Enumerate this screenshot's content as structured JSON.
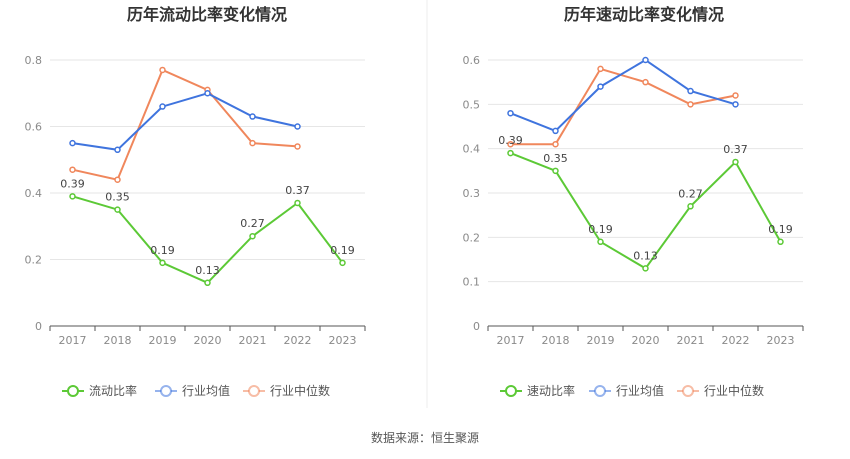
{
  "source_text": "数据来源：恒生聚源",
  "colors": {
    "company": "#5cc936",
    "industry_avg": "#3f74de",
    "industry_median": "#f0875c",
    "grid": "#e6e6e6",
    "axis": "#555555"
  },
  "chart_data": [
    {
      "type": "line",
      "title": "历年流动比率变化情况",
      "categories": [
        "2017",
        "2018",
        "2019",
        "2020",
        "2021",
        "2022",
        "2023"
      ],
      "ylim": [
        0,
        0.8
      ],
      "yticks": [
        0,
        0.2,
        0.4,
        0.6,
        0.8
      ],
      "ytick_labels": [
        "0",
        "0.2",
        "0.4",
        "0.6",
        "0.8"
      ],
      "series": [
        {
          "name": "流动比率",
          "key": "company",
          "values": [
            0.39,
            0.35,
            0.19,
            0.13,
            0.27,
            0.37,
            0.19
          ],
          "labels": [
            "0.39",
            "0.35",
            "0.19",
            "0.13",
            "0.27",
            "0.37",
            "0.19"
          ]
        },
        {
          "name": "行业均值",
          "key": "industry_avg",
          "values": [
            0.55,
            0.53,
            0.66,
            0.7,
            0.63,
            0.6,
            null
          ]
        },
        {
          "name": "行业中位数",
          "key": "industry_median",
          "values": [
            0.47,
            0.44,
            0.77,
            0.71,
            0.55,
            0.54,
            null
          ]
        }
      ]
    },
    {
      "type": "line",
      "title": "历年速动比率变化情况",
      "categories": [
        "2017",
        "2018",
        "2019",
        "2020",
        "2021",
        "2022",
        "2023"
      ],
      "ylim": [
        0,
        0.6
      ],
      "yticks": [
        0,
        0.1,
        0.2,
        0.3,
        0.4,
        0.5,
        0.6
      ],
      "ytick_labels": [
        "0",
        "0.1",
        "0.2",
        "0.3",
        "0.4",
        "0.5",
        "0.6"
      ],
      "series": [
        {
          "name": "速动比率",
          "key": "company",
          "values": [
            0.39,
            0.35,
            0.19,
            0.13,
            0.27,
            0.37,
            0.19
          ],
          "labels": [
            "0.39",
            "0.35",
            "0.19",
            "0.13",
            "0.27",
            "0.37",
            "0.19"
          ]
        },
        {
          "name": "行业均值",
          "key": "industry_avg",
          "values": [
            0.48,
            0.44,
            0.54,
            0.6,
            0.53,
            0.5,
            null
          ]
        },
        {
          "name": "行业中位数",
          "key": "industry_median",
          "values": [
            0.41,
            0.41,
            0.58,
            0.55,
            0.5,
            0.52,
            null
          ]
        }
      ]
    }
  ]
}
